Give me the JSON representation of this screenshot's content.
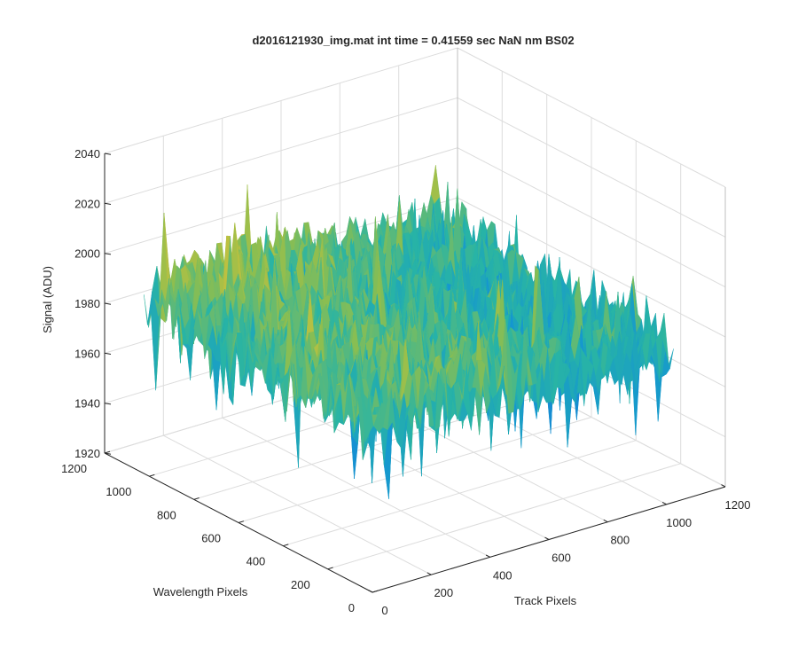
{
  "chart_data": {
    "type": "surface",
    "title": "d2016121930_img.mat int time = 0.41559 sec  NaN nm BS02",
    "xlabel": "Track Pixels",
    "ylabel": "Wavelength Pixels",
    "zlabel": "Signal (ADU)",
    "xlim": [
      0,
      1200
    ],
    "ylim": [
      0,
      1200
    ],
    "zlim": [
      1920,
      2040
    ],
    "xticks": [
      "0",
      "200",
      "400",
      "600",
      "800",
      "1000",
      "1200"
    ],
    "yticks": [
      "0",
      "200",
      "400",
      "600",
      "800",
      "1000",
      "1200"
    ],
    "zticks": [
      "1920",
      "1940",
      "1960",
      "1980",
      "2000",
      "2020",
      "2040"
    ],
    "surface_extent": {
      "x": [
        0,
        1024
      ],
      "y": [
        0,
        1024
      ]
    },
    "surface_mean": 1985,
    "surface_peak_range": [
      1935,
      2030
    ],
    "colormap": "parula",
    "grid": true,
    "view": "3d-isometric"
  }
}
